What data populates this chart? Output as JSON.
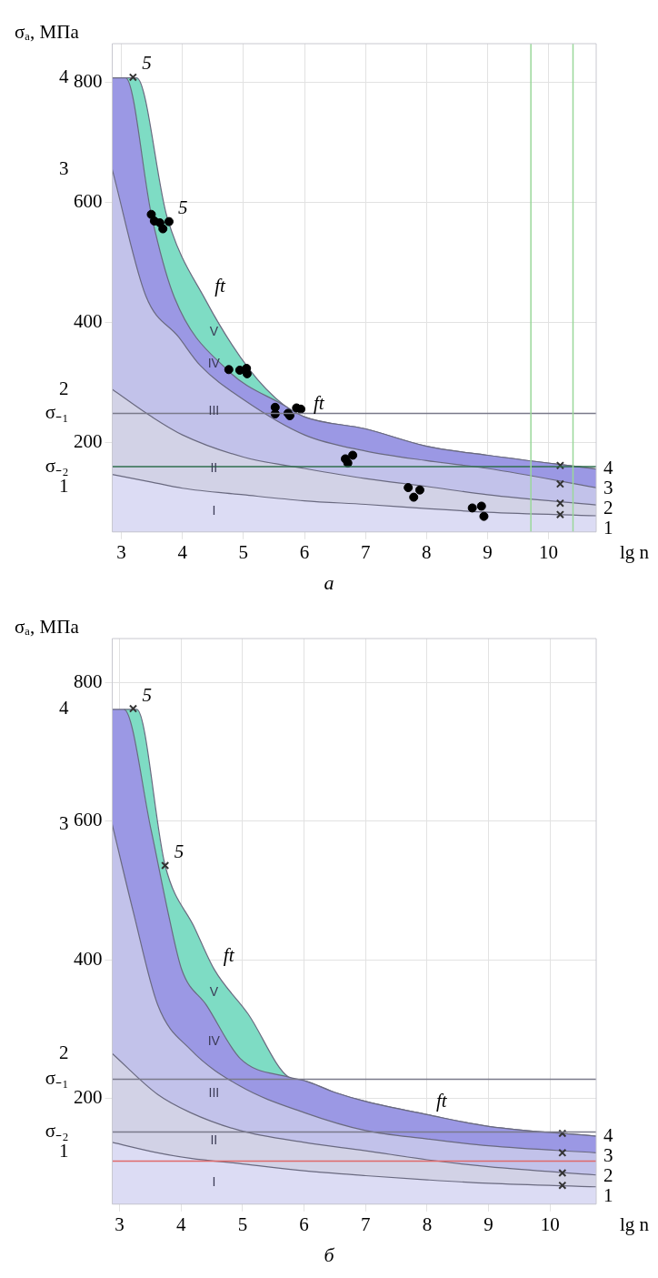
{
  "chart_data": [
    {
      "type": "area",
      "title": "а",
      "xlabel": "lg n",
      "ylabel": "σₐ, МПа",
      "xlim": [
        2.85,
        10.78
      ],
      "xticks": [
        3,
        4,
        5,
        6,
        7,
        8,
        9,
        10
      ],
      "ylim": [
        50,
        865
      ],
      "yticks": [
        200,
        400,
        600,
        800
      ],
      "grid": true,
      "series": [
        {
          "name": "I",
          "color": "#dcdcf4",
          "x": [
            2.85,
            3.5,
            4,
            5,
            6,
            7,
            8,
            9,
            10.78
          ],
          "values": [
            146,
            133,
            123,
            112,
            102,
            96,
            89,
            83,
            77
          ]
        },
        {
          "name": "II",
          "color": "#d2d2e6",
          "x": [
            2.85,
            3.5,
            4,
            5,
            6,
            7,
            8,
            9,
            10.78
          ],
          "values": [
            288,
            242,
            212,
            175,
            156,
            139,
            126,
            112,
            95
          ]
        },
        {
          "name": "III",
          "color": "#c2c2ea",
          "x": [
            2.85,
            3.4,
            3.94,
            4.29,
            5,
            6,
            7,
            8,
            9,
            10.78
          ],
          "values": [
            655,
            444,
            375,
            328,
            271,
            212,
            185,
            169,
            156,
            124
          ]
        },
        {
          "name": "IV",
          "color": "#9b98e4",
          "x": [
            2.85,
            3.07,
            3.5,
            3.87,
            4.73,
            5.67,
            6,
            7,
            8,
            9,
            10.78
          ],
          "values": [
            808,
            808,
            575,
            441,
            321,
            261,
            242,
            222,
            193,
            178,
            155
          ]
        },
        {
          "name": "V",
          "color": "#7edcc4",
          "x": [
            3.07,
            3.25,
            3.75,
            4.38,
            5.1,
            5.67,
            6,
            7,
            8,
            9,
            10.78
          ],
          "values": [
            808,
            808,
            575,
            437,
            321,
            261,
            242,
            222,
            193,
            178,
            155
          ]
        },
        {
          "type": "scatter",
          "marker": "circle",
          "color": "#000000",
          "x": [
            3.49,
            3.54,
            3.63,
            3.68,
            3.78,
            4.76,
            4.94,
            5.05,
            5.06,
            5.52,
            5.52,
            5.73,
            5.76,
            5.87,
            5.94,
            6.67,
            6.71,
            6.79,
            7.7,
            7.79,
            7.89,
            8.75,
            8.9,
            8.94
          ],
          "values": [
            580,
            569,
            566,
            556,
            568,
            321,
            320,
            323,
            314,
            258,
            247,
            248,
            244,
            257,
            255,
            172,
            165,
            178,
            124,
            108,
            120,
            90,
            93,
            76
          ]
        },
        {
          "type": "scatter",
          "marker": "cross",
          "color": "#333333",
          "x": [
            3.19,
            10.19,
            10.19,
            10.19,
            10.19
          ],
          "values": [
            809,
            161,
            130,
            98,
            79
          ]
        }
      ],
      "ref_lines": [
        {
          "axis": "y",
          "value": 248,
          "label": "σ₋₁",
          "color": "#7a7a8a"
        },
        {
          "axis": "y",
          "value": 159,
          "label": "σ₋₂",
          "color": "#2f6e4e"
        },
        {
          "axis": "x",
          "value": 9.71,
          "color": "#9ad89a"
        },
        {
          "axis": "x",
          "value": 10.4,
          "color": "#9ad89a"
        }
      ],
      "annotations": [
        {
          "text": "1",
          "x": 2.85,
          "y": 146
        },
        {
          "text": "2",
          "x": 2.85,
          "y": 288
        },
        {
          "text": "3",
          "x": 2.85,
          "y": 655
        },
        {
          "text": "4",
          "x": 2.85,
          "y": 808
        },
        {
          "text": "1",
          "x": 10.78,
          "y": 77
        },
        {
          "text": "2",
          "x": 10.78,
          "y": 95
        },
        {
          "text": "3",
          "x": 10.78,
          "y": 124
        },
        {
          "text": "4",
          "x": 10.78,
          "y": 155
        },
        {
          "text": "5",
          "x": 3.19,
          "y": 809
        },
        {
          "text": "5",
          "x": 3.78,
          "y": 568
        },
        {
          "text": "ft",
          "x": 4.38,
          "y": 437
        },
        {
          "text": "ft",
          "x": 6,
          "y": 242
        }
      ]
    },
    {
      "type": "area",
      "title": "б",
      "xlabel": "lg n",
      "ylabel": "σₐ, МПа",
      "xlim": [
        2.88,
        10.75
      ],
      "xticks": [
        3,
        4,
        5,
        6,
        7,
        8,
        9,
        10
      ],
      "ylim": [
        48,
        863
      ],
      "yticks": [
        200,
        400,
        600,
        800
      ],
      "grid": true,
      "series": [
        {
          "name": "I",
          "color": "#dcdcf4",
          "x": [
            2.88,
            3.62,
            4.15,
            5,
            6,
            7,
            8,
            9,
            10.75
          ],
          "values": [
            137,
            122,
            114,
            106,
            96,
            89,
            83,
            78,
            73
          ]
        },
        {
          "name": "II",
          "color": "#d2d2e6",
          "x": [
            2.88,
            3.62,
            4.15,
            4.96,
            6,
            7,
            8,
            9,
            10.75
          ],
          "values": [
            265,
            206,
            180,
            154,
            137,
            125,
            112,
            102,
            90
          ]
        },
        {
          "name": "III",
          "color": "#c2c2ea",
          "x": [
            2.88,
            3.22,
            3.62,
            4.15,
            4.96,
            6,
            7,
            8,
            9,
            10.75
          ],
          "values": [
            595,
            470,
            335,
            271,
            218,
            180,
            154,
            142,
            132,
            122
          ]
        },
        {
          "name": "IV",
          "color": "#9b98e4",
          "x": [
            2.88,
            3.07,
            3.51,
            3.81,
            4.01,
            4.41,
            4.96,
            5.75,
            6,
            6.5,
            7,
            8,
            9,
            10.75
          ],
          "values": [
            761,
            761,
            588,
            459,
            386,
            335,
            258,
            231,
            226,
            209,
            196,
            177,
            160,
            146
          ]
        },
        {
          "name": "V",
          "color": "#7edcc4",
          "x": [
            3.07,
            3.28,
            3.74,
            4.22,
            4.54,
            5.09,
            5.75,
            6,
            6.5,
            7,
            8,
            9,
            10.75
          ],
          "values": [
            761,
            761,
            536,
            446,
            386,
            322,
            231,
            226,
            209,
            196,
            177,
            160,
            146
          ]
        },
        {
          "type": "scatter",
          "marker": "cross",
          "color": "#333333",
          "x": [
            3.22,
            3.74,
            10.2,
            10.2,
            10.2,
            10.2
          ],
          "values": [
            762,
            536,
            150,
            122,
            93,
            75
          ]
        }
      ],
      "ref_lines": [
        {
          "axis": "y",
          "value": 228,
          "label": "σ₋₁",
          "color": "#7a7a8a"
        },
        {
          "axis": "y",
          "value": 152,
          "label": "σ₋₂",
          "color": "#7a7a8a"
        },
        {
          "axis": "y",
          "value": 110,
          "color": "#e06a6a"
        }
      ],
      "annotations": [
        {
          "text": "1",
          "x": 2.88,
          "y": 137
        },
        {
          "text": "2",
          "x": 2.88,
          "y": 265
        },
        {
          "text": "3",
          "x": 2.88,
          "y": 595
        },
        {
          "text": "4",
          "x": 2.88,
          "y": 761
        },
        {
          "text": "1",
          "x": 10.75,
          "y": 73
        },
        {
          "text": "2",
          "x": 10.75,
          "y": 90
        },
        {
          "text": "3",
          "x": 10.75,
          "y": 122
        },
        {
          "text": "4",
          "x": 10.75,
          "y": 146
        },
        {
          "text": "5",
          "x": 3.22,
          "y": 762
        },
        {
          "text": "5",
          "x": 3.74,
          "y": 536
        },
        {
          "text": "ft",
          "x": 4.54,
          "y": 386
        },
        {
          "text": "ft",
          "x": 8,
          "y": 177
        }
      ]
    }
  ]
}
